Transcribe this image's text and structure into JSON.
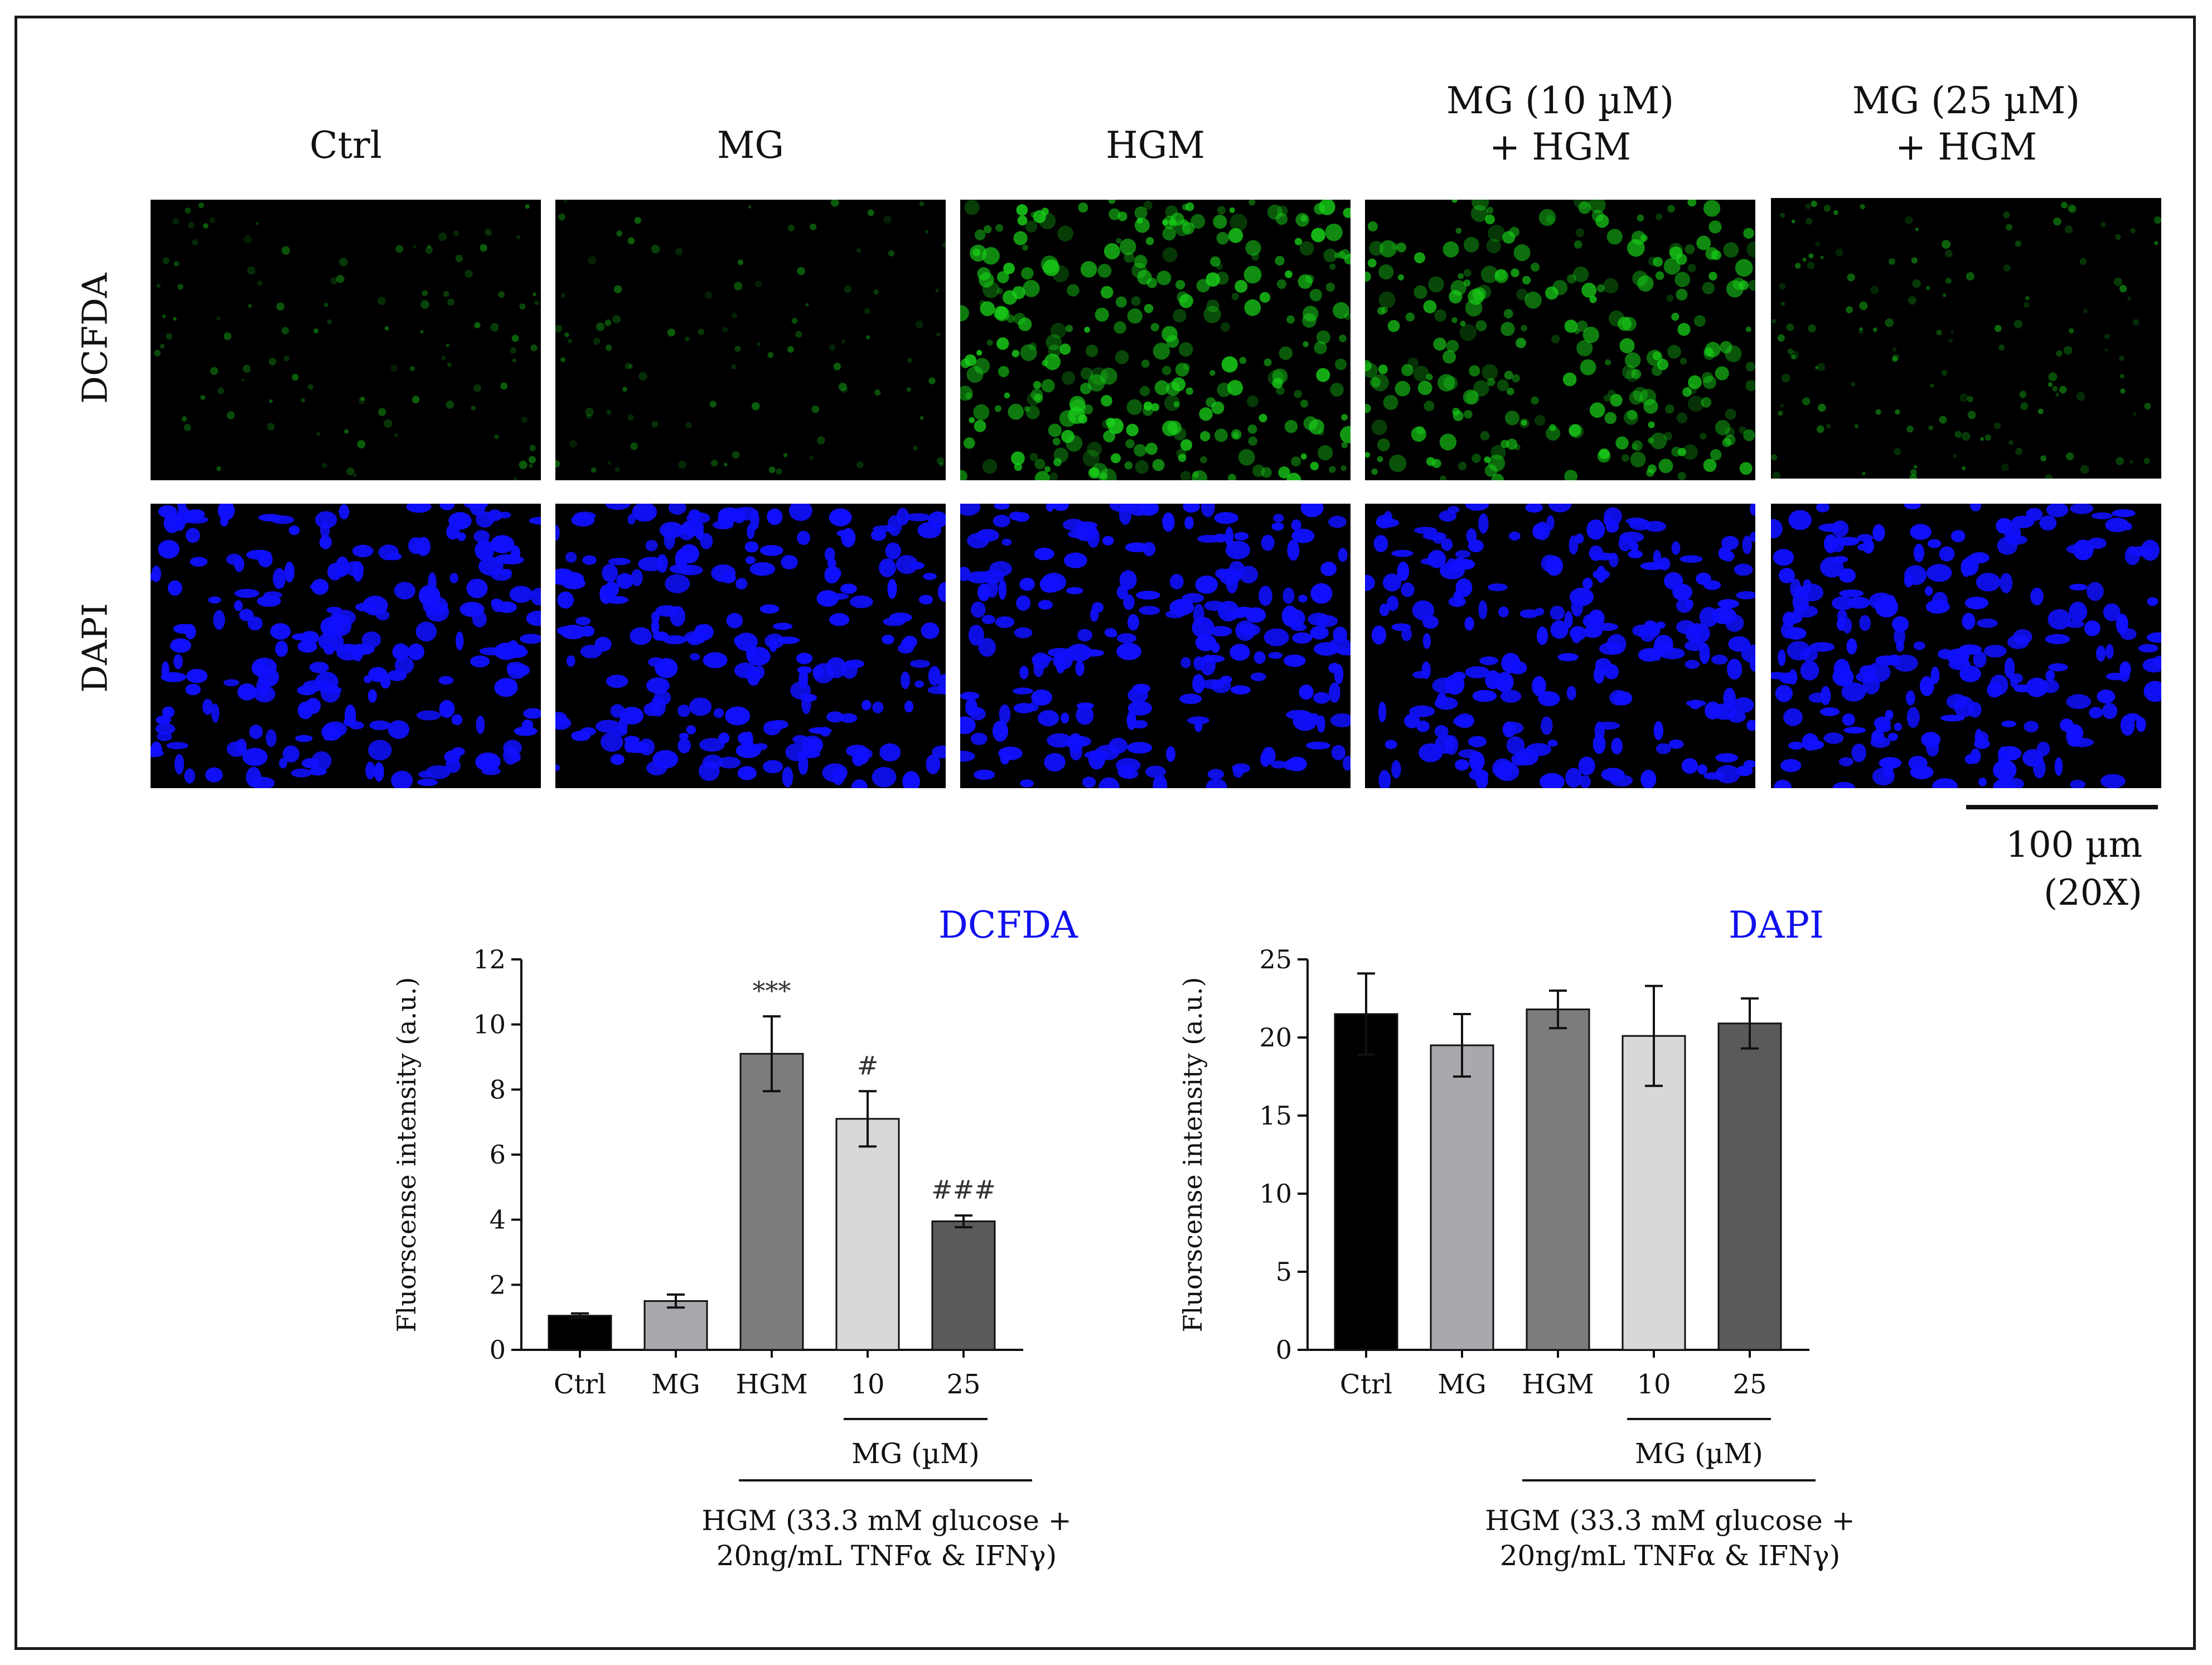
{
  "figure": {
    "column_labels": [
      "Ctrl",
      "MG",
      "HGM",
      "MG (10 µM)\n+ HGM",
      "MG (25 µM)\n+ HGM"
    ],
    "row_labels": [
      "DCFDA",
      "DAPI"
    ],
    "scale_bar": {
      "length_label": "100 µm",
      "magnification_label": "(20X)"
    },
    "stain_colors": {
      "DCFDA": "#19d219",
      "DAPI": "#1010ff"
    },
    "green_levels": [
      0.25,
      0.22,
      1.0,
      0.85,
      0.38
    ]
  },
  "chart_data": [
    {
      "type": "bar",
      "title": "DCFDA",
      "title_color": "#1010ee",
      "ylabel": "Fluorscense intensity (a.u.)",
      "categories": [
        "Ctrl",
        "MG",
        "HGM",
        "10",
        "25"
      ],
      "values": [
        1.05,
        1.5,
        9.1,
        7.1,
        3.95
      ],
      "errors": [
        0.07,
        0.2,
        1.15,
        0.85,
        0.18
      ],
      "annotations": [
        "",
        "",
        "***",
        "#",
        "###"
      ],
      "bar_colors": [
        "#000000",
        "#a8a8ad",
        "#7c7c7c",
        "#d8d8d8",
        "#5a5a5a"
      ],
      "ylim": [
        0,
        12
      ],
      "yticks": [
        0,
        2,
        4,
        6,
        8,
        10,
        12
      ],
      "group_label_mg": "MG (µM)",
      "group_label_hgm": "HGM (33.3 mM glucose +\n20ng/mL TNFα & IFNγ)"
    },
    {
      "type": "bar",
      "title": "DAPI",
      "title_color": "#1010ee",
      "ylabel": "Fluorscense intensity (a.u.)",
      "categories": [
        "Ctrl",
        "MG",
        "HGM",
        "10",
        "25"
      ],
      "values": [
        21.5,
        19.5,
        21.8,
        20.1,
        20.9
      ],
      "errors": [
        2.6,
        2.0,
        1.2,
        3.2,
        1.6
      ],
      "annotations": [
        "",
        "",
        "",
        "",
        ""
      ],
      "bar_colors": [
        "#000000",
        "#a8a8ad",
        "#7c7c7c",
        "#d8d8d8",
        "#5a5a5a"
      ],
      "ylim": [
        0,
        25
      ],
      "yticks": [
        0,
        5,
        10,
        15,
        20,
        25
      ],
      "group_label_mg": "MG (µM)",
      "group_label_hgm": "HGM (33.3 mM glucose +\n20ng/mL TNFα & IFNγ)"
    }
  ]
}
